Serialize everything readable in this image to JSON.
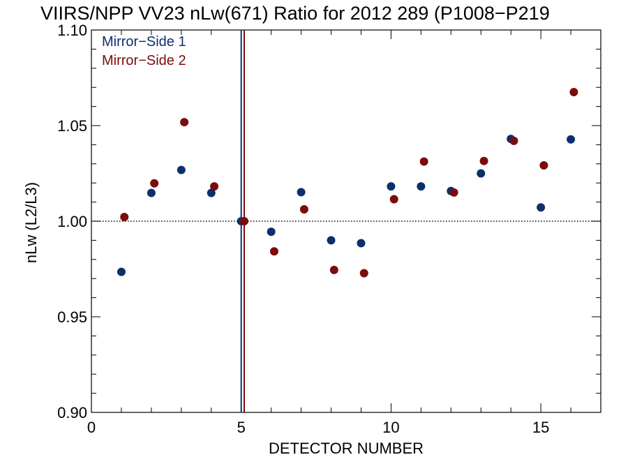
{
  "chart_data": {
    "type": "scatter",
    "title": "VIIRS/NPP VV23 nLw(671) Ratio for 2012 289 (P1008−P219",
    "xlabel": "DETECTOR NUMBER",
    "ylabel": "nLw (L2/L3)",
    "xlim": [
      0,
      17
    ],
    "ylim": [
      0.9,
      1.1
    ],
    "x_ticks": [
      0,
      5,
      10,
      15
    ],
    "x_tick_labels": [
      "0",
      "5",
      "10",
      "15"
    ],
    "y_ticks": [
      0.9,
      0.95,
      1.0,
      1.05,
      1.1
    ],
    "y_tick_labels": [
      "0.90",
      "0.95",
      "1.00",
      "1.05",
      "1.10"
    ],
    "reference_line": {
      "y": 1.0,
      "style": "dotted",
      "color": "#000000"
    },
    "vertical_markers": [
      {
        "x": 5.0,
        "color": "#0d2f6e"
      },
      {
        "x": 5.1,
        "color": "#7a0c0c"
      }
    ],
    "legend_position": "top-left",
    "grid": false,
    "series": [
      {
        "name": "Mirror−Side 1",
        "color": "#0d2f6e",
        "x": [
          1,
          2,
          3,
          4,
          5,
          6,
          7,
          8,
          9,
          10,
          11,
          12,
          13,
          14,
          15,
          16
        ],
        "y": [
          0.9735,
          1.0148,
          1.0268,
          1.0148,
          1.0,
          0.9945,
          1.0152,
          0.99,
          0.9885,
          1.0182,
          1.0182,
          1.0158,
          1.025,
          1.043,
          1.0072,
          1.0428
        ]
      },
      {
        "name": "Mirror−Side 2",
        "color": "#7a0c0c",
        "x": [
          1.1,
          2.1,
          3.1,
          4.1,
          5.1,
          6.1,
          7.1,
          8.1,
          9.1,
          10.1,
          11.1,
          12.1,
          13.1,
          14.1,
          15.1,
          16.1
        ],
        "y": [
          1.0022,
          1.0198,
          1.0518,
          1.0182,
          1.0,
          0.9842,
          1.0062,
          0.9745,
          0.9728,
          1.0115,
          1.0312,
          1.015,
          1.0315,
          1.042,
          1.0292,
          1.0675
        ]
      }
    ]
  }
}
